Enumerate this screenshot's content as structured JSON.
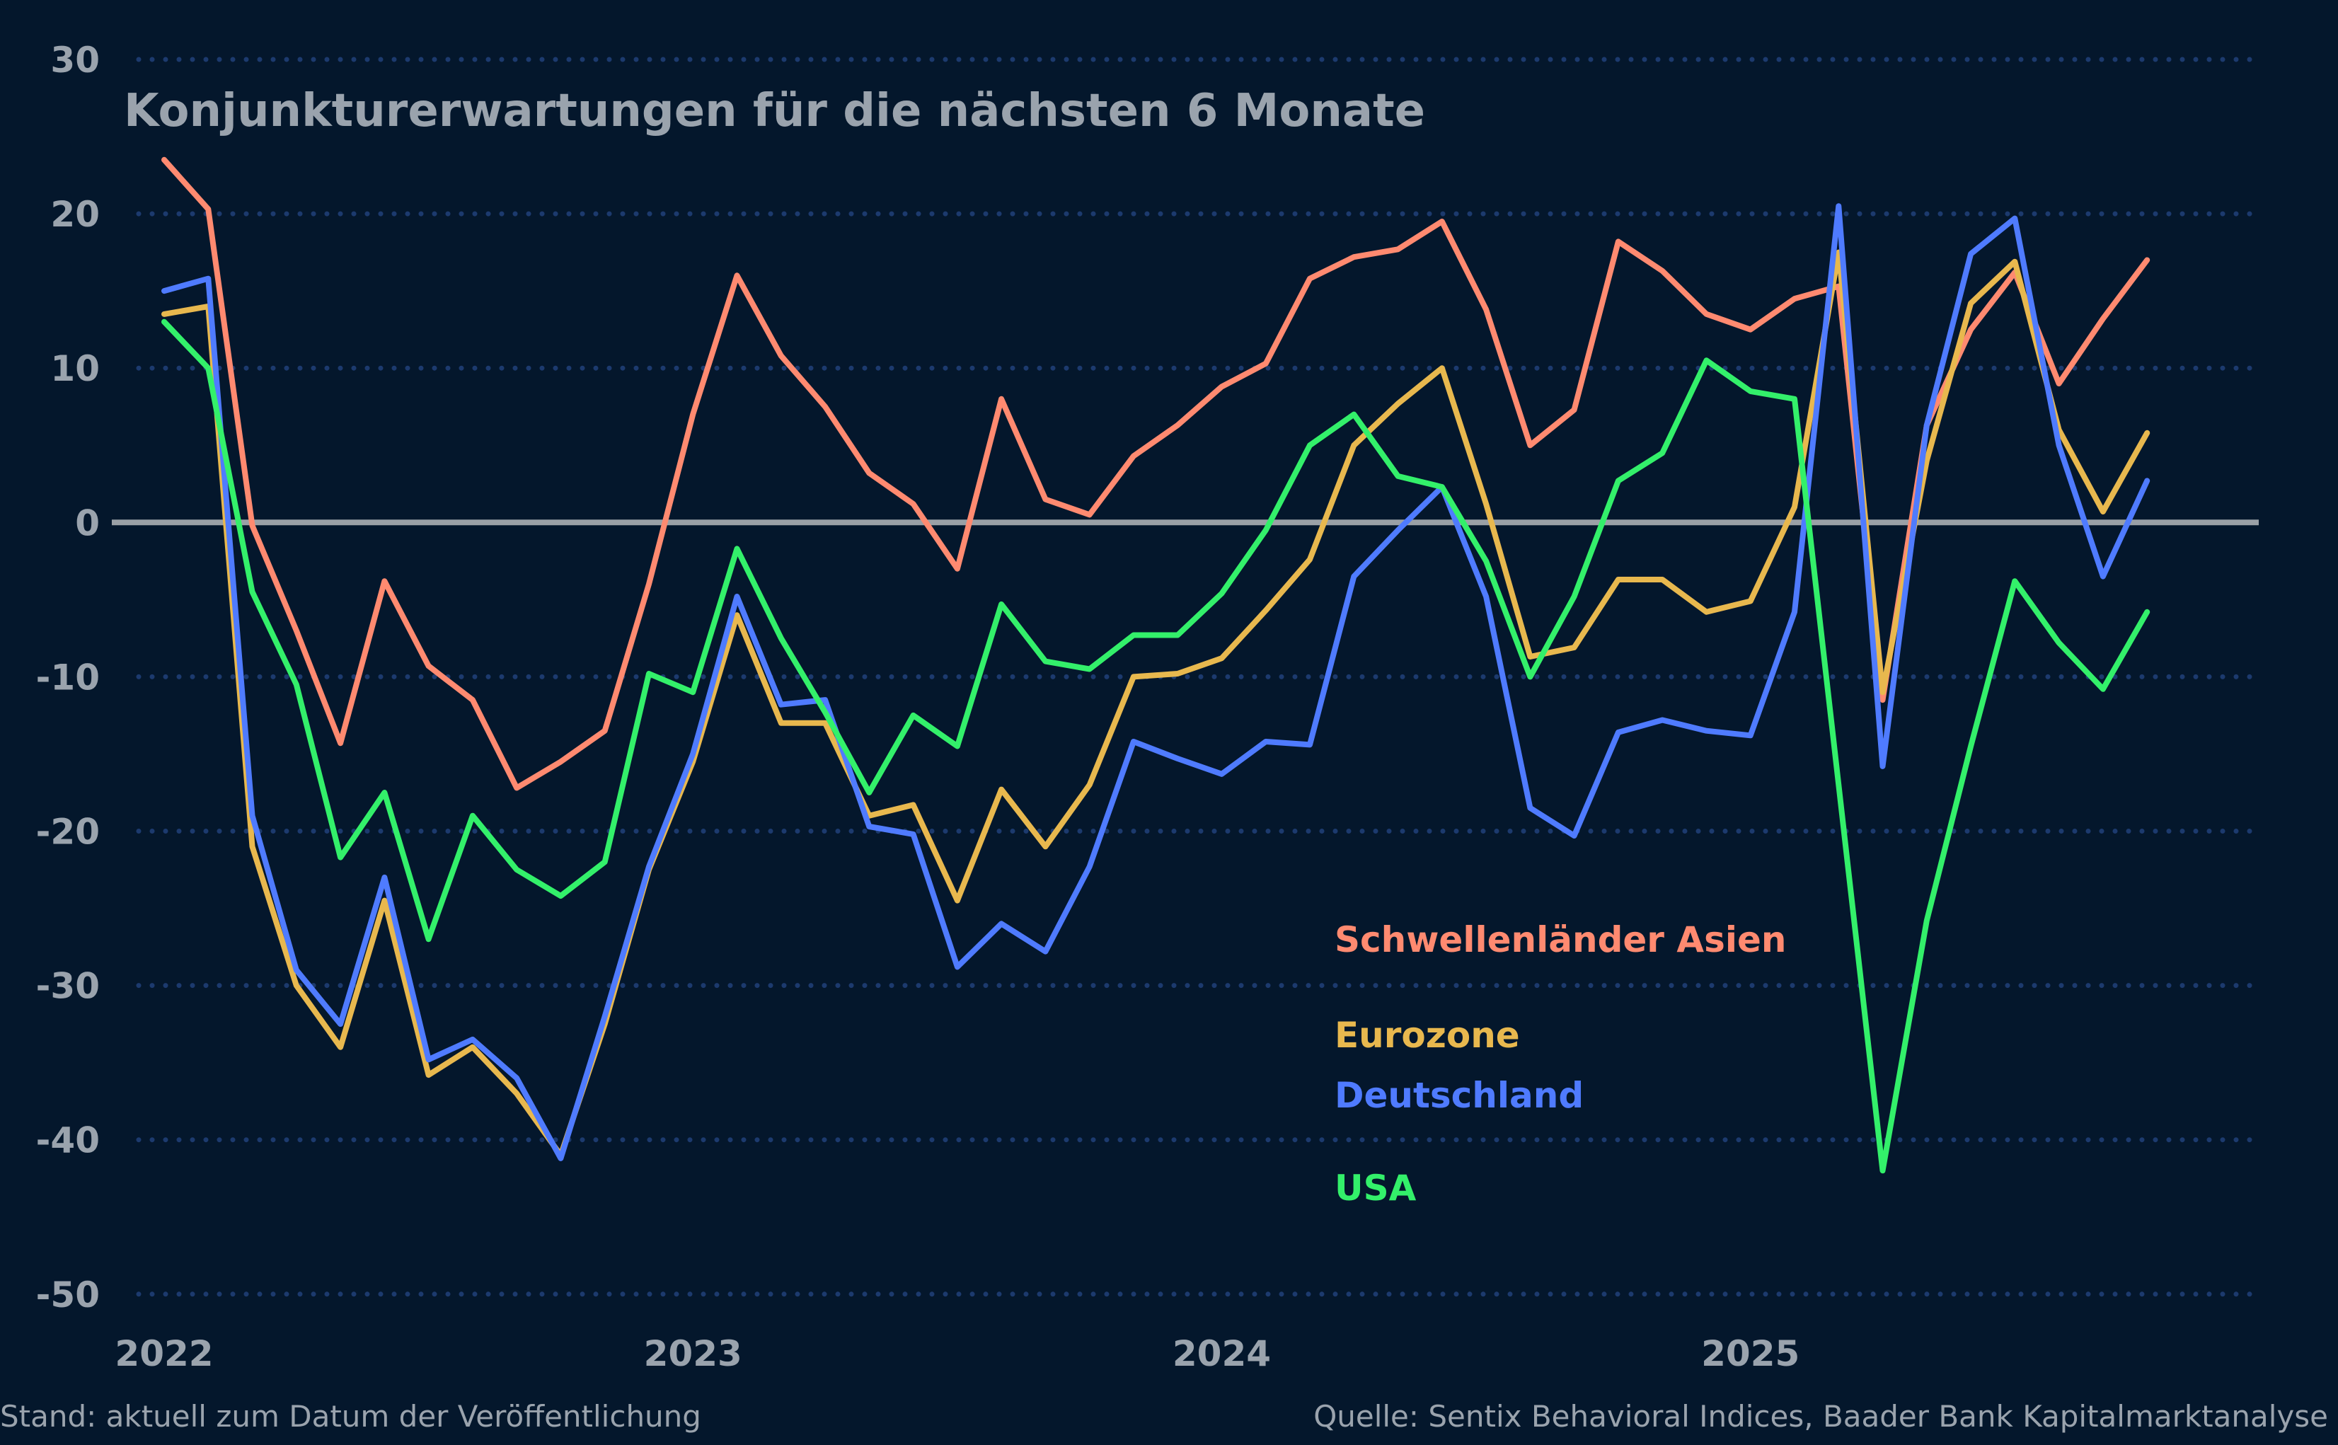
{
  "chart_data": {
    "type": "line",
    "title": "Konjunkturerwartungen für die nächsten 6 Monate",
    "xlabel": "",
    "ylabel": "",
    "ylim": [
      -50,
      30
    ],
    "yticks": [
      30,
      20,
      10,
      0,
      -10,
      -20,
      -30,
      -40,
      -50
    ],
    "ytick_labels": [
      "30",
      "20",
      "10",
      "0",
      "-10",
      "-20",
      "-30",
      "-40",
      "-50"
    ],
    "xtick_labels": [
      "2022",
      "2023",
      "2024",
      "2025"
    ],
    "grid": "horizontal dotted",
    "legend_placement": "inline labels, lower-center",
    "x": [
      "2022-01",
      "2022-02",
      "2022-03",
      "2022-04",
      "2022-05",
      "2022-06",
      "2022-07",
      "2022-08",
      "2022-09",
      "2022-10",
      "2022-11",
      "2022-12",
      "2023-01",
      "2023-02",
      "2023-03",
      "2023-04",
      "2023-05",
      "2023-06",
      "2023-07",
      "2023-08",
      "2023-09",
      "2023-10",
      "2023-11",
      "2023-12",
      "2024-01",
      "2024-02",
      "2024-03",
      "2024-04",
      "2024-05",
      "2024-06",
      "2024-07",
      "2024-08",
      "2024-09",
      "2024-10",
      "2024-11",
      "2024-12",
      "2025-01",
      "2025-02",
      "2025-03",
      "2025-04",
      "2025-05",
      "2025-06",
      "2025-07",
      "2025-08",
      "2025-09",
      "2025-10"
    ],
    "series": [
      {
        "name": "Schwellenländer Asien",
        "color": "#ff8a70",
        "values": [
          23.5,
          20.3,
          -0.2,
          -7,
          -14.3,
          -3.8,
          -9.3,
          -11.5,
          -17.2,
          -15.5,
          -13.5,
          -4,
          7,
          16,
          10.8,
          7.5,
          3.2,
          1.2,
          -3,
          8,
          1.5,
          0.5,
          4.3,
          6.3,
          8.8,
          10.3,
          15.8,
          17.2,
          17.7,
          19.5,
          13.8,
          5,
          7.3,
          18.2,
          16.3,
          13.5,
          12.5,
          14.5,
          15.3,
          -11.5,
          6.3,
          12.5,
          16.2,
          9,
          13.2,
          17
        ]
      },
      {
        "name": "Eurozone",
        "color": "#e8b84e",
        "values": [
          13.5,
          14,
          -21,
          -30,
          -34,
          -24.5,
          -35.8,
          -34,
          -37,
          -41,
          -32.5,
          -22.5,
          -15.5,
          -6,
          -13,
          -13,
          -19,
          -18.3,
          -24.5,
          -17.3,
          -21,
          -17,
          -10,
          -9.8,
          -8.8,
          -5.7,
          -2.4,
          5,
          7.7,
          10,
          1.2,
          -8.7,
          -8.1,
          -3.7,
          -3.7,
          -5.8,
          -5.1,
          1,
          17.5,
          -11,
          4,
          14.2,
          16.9,
          6,
          0.7,
          5.8
        ]
      },
      {
        "name": "Deutschland",
        "color": "#4f7bff",
        "values": [
          15,
          15.8,
          -19,
          -29,
          -32.5,
          -23,
          -34.8,
          -33.5,
          -36,
          -41.2,
          -32,
          -22.3,
          -15,
          -4.8,
          -11.8,
          -11.5,
          -19.7,
          -20.2,
          -28.8,
          -26,
          -27.8,
          -22.3,
          -14.2,
          -15.3,
          -16.3,
          -14.2,
          -14.4,
          -3.5,
          -0.5,
          2.3,
          -4.8,
          -18.5,
          -20.3,
          -13.6,
          -12.8,
          -13.5,
          -13.8,
          -5.8,
          20.5,
          -15.8,
          6.3,
          17.4,
          19.7,
          5,
          -3.5,
          2.7
        ]
      },
      {
        "name": "USA",
        "color": "#33f06a",
        "values": [
          13,
          10,
          -4.5,
          -10.5,
          -21.7,
          -17.5,
          -27,
          -19,
          -22.5,
          -24.2,
          -22,
          -9.8,
          -11,
          -1.7,
          -7.5,
          -12.3,
          -17.5,
          -12.5,
          -14.5,
          -5.3,
          -9,
          -9.5,
          -7.3,
          -7.3,
          -4.6,
          -0.5,
          5,
          7,
          3,
          2.3,
          -2.5,
          -10,
          -4.8,
          2.7,
          4.5,
          10.5,
          8.5,
          8,
          -17,
          -42,
          -25.8,
          -14.5,
          -3.8,
          -7.8,
          -10.8,
          -5.8
        ]
      }
    ]
  },
  "footer": {
    "left": "Stand: aktuell zum Datum der Veröffentlichung",
    "right": "Quelle: Sentix Behavioral Indices, Baader Bank Kapitalmarktanalyse"
  },
  "colors": {
    "background": "#04172c",
    "grid": "#1c3a6e",
    "zero_line": "#9aa0a6",
    "text": "#9aa3ad"
  }
}
